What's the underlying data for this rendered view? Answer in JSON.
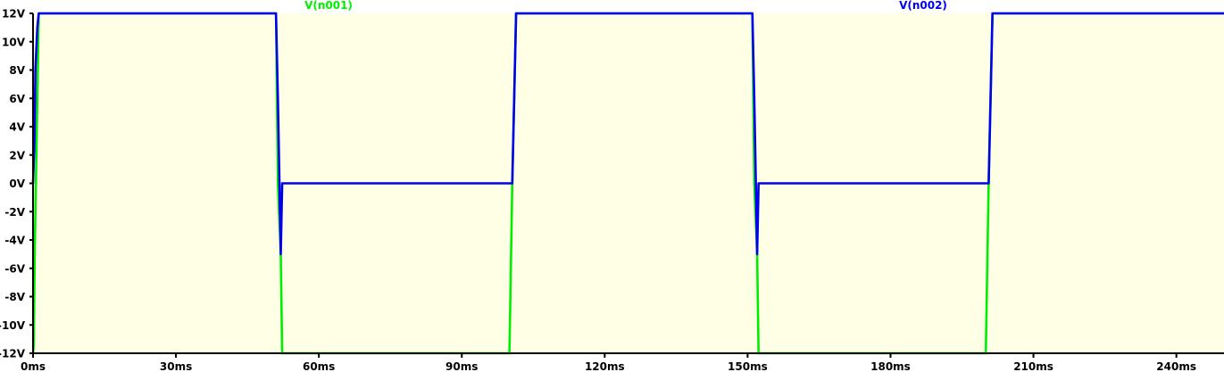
{
  "chart_data": {
    "type": "line",
    "title": "",
    "xlabel": "",
    "ylabel": "",
    "xlim": [
      0,
      250
    ],
    "ylim": [
      -12,
      12
    ],
    "grid": false,
    "legend_position": "top",
    "x_ticks": [
      0,
      30,
      60,
      90,
      120,
      150,
      180,
      210,
      240
    ],
    "x_tick_labels": [
      "0ms",
      "30ms",
      "60ms",
      "90ms",
      "120ms",
      "150ms",
      "180ms",
      "210ms",
      "240ms"
    ],
    "y_ticks": [
      12,
      10,
      8,
      6,
      4,
      2,
      0,
      -2,
      -4,
      -6,
      -8,
      -10,
      -12
    ],
    "y_tick_labels": [
      "12V",
      "10V",
      "8V",
      "6V",
      "4V",
      "2V",
      "0V",
      "-2V",
      "-4V",
      "-6V",
      "-8V",
      "-10V",
      "-12V"
    ],
    "series": [
      {
        "name": "V(n001)",
        "color": "#00ee00",
        "x": [
          0,
          0.15,
          0.35,
          0.6,
          0.9,
          1.2,
          51.0,
          51.4,
          52.0,
          52.3,
          100.0,
          100.3,
          100.6,
          101.0,
          101.4,
          151.0,
          151.4,
          152.0,
          152.3,
          200.0,
          200.3,
          200.6,
          201.0,
          201.4,
          250
        ],
        "y": [
          -12,
          -11.5,
          -5,
          0,
          6,
          12,
          12,
          0,
          -5,
          -12,
          -12,
          -6,
          0,
          6,
          12,
          12,
          0,
          -5,
          -12,
          -12,
          -6,
          0,
          6,
          12,
          12
        ]
      },
      {
        "name": "V(n002)",
        "color": "#0000ee",
        "x": [
          0,
          0.3,
          0.5,
          0.9,
          1.2,
          51.0,
          51.4,
          52.0,
          52.3,
          100.0,
          100.3,
          100.6,
          101.0,
          101.4,
          151.0,
          151.4,
          152.0,
          152.3,
          160.0,
          200.0,
          200.3,
          200.6,
          201.0,
          201.4,
          250
        ],
        "y": [
          0,
          3,
          8,
          11,
          12,
          12,
          6,
          -5,
          0,
          0,
          0,
          0,
          6,
          12,
          12,
          6,
          -5,
          0,
          0,
          0,
          0,
          0,
          6,
          12,
          12
        ]
      }
    ]
  }
}
